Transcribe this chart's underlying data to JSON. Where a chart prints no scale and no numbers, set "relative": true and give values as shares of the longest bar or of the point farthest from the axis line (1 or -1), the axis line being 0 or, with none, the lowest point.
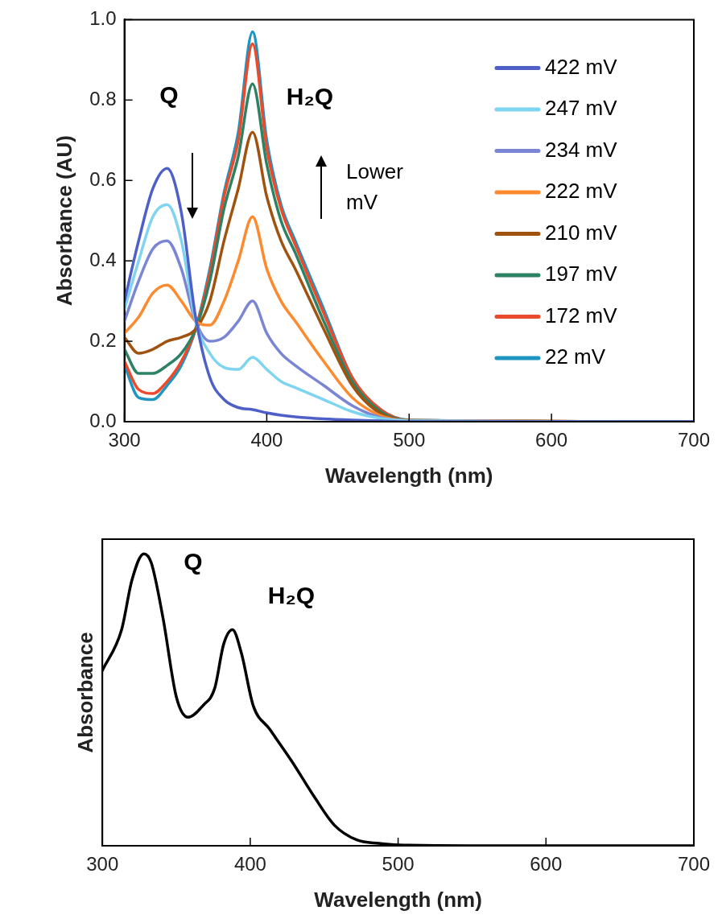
{
  "chart_data": [
    {
      "type": "line",
      "xlabel": "Wavelength (nm)",
      "ylabel": "Absorbance (AU)",
      "xlim": [
        300,
        700
      ],
      "xticks": [
        300,
        400,
        500,
        600,
        700
      ],
      "ylim": [
        0,
        1
      ],
      "yticks": [
        {
          "value": 0,
          "label": "0.0"
        },
        {
          "value": 0.2,
          "label": "0.2"
        },
        {
          "value": 0.4,
          "label": "0.4"
        },
        {
          "value": 0.6,
          "label": "0.6"
        },
        {
          "value": 0.8,
          "label": "0.8"
        },
        {
          "value": 1,
          "label": "1.0"
        }
      ],
      "grid": false,
      "legend": "top right",
      "marker": "none",
      "line_style": "solid",
      "annotations": [
        "Q",
        "H₂Q",
        "Lower mV"
      ],
      "x": [
        300,
        310,
        320,
        330,
        340,
        350,
        360,
        370,
        380,
        390,
        400,
        410,
        420,
        440,
        460,
        480,
        500,
        700
      ],
      "series": [
        {
          "name": "422 mV",
          "color": "#4f5fc8",
          "values": [
            0.3,
            0.45,
            0.58,
            0.63,
            0.52,
            0.26,
            0.11,
            0.055,
            0.035,
            0.03,
            0.022,
            0.016,
            0.012,
            0.007,
            0.004,
            0.002,
            0,
            0
          ]
        },
        {
          "name": "247 mV",
          "color": "#7fd4f0",
          "values": [
            0.28,
            0.4,
            0.51,
            0.54,
            0.45,
            0.25,
            0.17,
            0.135,
            0.13,
            0.16,
            0.13,
            0.1,
            0.085,
            0.055,
            0.025,
            0.008,
            0.002,
            0
          ]
        },
        {
          "name": "234 mV",
          "color": "#7a86d4",
          "values": [
            0.25,
            0.35,
            0.43,
            0.45,
            0.38,
            0.25,
            0.2,
            0.21,
            0.25,
            0.3,
            0.22,
            0.17,
            0.14,
            0.09,
            0.04,
            0.01,
            0.002,
            0
          ]
        },
        {
          "name": "222 mV",
          "color": "#fd8a2e",
          "values": [
            0.22,
            0.26,
            0.32,
            0.34,
            0.3,
            0.25,
            0.24,
            0.3,
            0.4,
            0.51,
            0.38,
            0.3,
            0.25,
            0.15,
            0.06,
            0.015,
            0.003,
            0
          ]
        },
        {
          "name": "210 mV",
          "color": "#a0520f",
          "values": [
            0.21,
            0.17,
            0.18,
            0.2,
            0.21,
            0.23,
            0.3,
            0.45,
            0.58,
            0.72,
            0.56,
            0.45,
            0.38,
            0.23,
            0.09,
            0.02,
            0.003,
            0
          ]
        },
        {
          "name": "197 mV",
          "color": "#2e8264",
          "values": [
            0.18,
            0.12,
            0.12,
            0.14,
            0.17,
            0.23,
            0.35,
            0.53,
            0.66,
            0.84,
            0.64,
            0.5,
            0.42,
            0.25,
            0.1,
            0.025,
            0.003,
            0
          ]
        },
        {
          "name": "172 mV",
          "color": "#ec4a2c",
          "values": [
            0.15,
            0.08,
            0.07,
            0.1,
            0.15,
            0.23,
            0.37,
            0.56,
            0.7,
            0.94,
            0.68,
            0.53,
            0.44,
            0.27,
            0.11,
            0.03,
            0.003,
            0
          ]
        },
        {
          "name": "22 mV",
          "color": "#1e95c0",
          "values": [
            0.14,
            0.06,
            0.055,
            0.09,
            0.14,
            0.23,
            0.38,
            0.57,
            0.72,
            0.97,
            0.7,
            0.54,
            0.45,
            0.28,
            0.11,
            0.03,
            0.004,
            0
          ]
        }
      ]
    },
    {
      "type": "line",
      "relative": true,
      "xlabel": "Wavelength (nm)",
      "ylabel": "Absorbance",
      "xlim": [
        300,
        700
      ],
      "xticks": [
        300,
        400,
        500,
        600,
        700
      ],
      "grid": false,
      "legend": false,
      "marker": "none",
      "line_style": "solid",
      "annotations": [
        "Q",
        "H₂Q"
      ],
      "x": [
        300,
        313,
        320,
        328,
        333,
        341,
        350,
        358,
        368,
        376,
        382,
        388,
        394,
        402,
        413,
        428,
        443,
        457,
        472,
        487,
        500,
        600,
        700
      ],
      "series": [
        {
          "color": "#000000",
          "values": [
            0.6,
            0.74,
            0.91,
            1.0,
            0.97,
            0.78,
            0.51,
            0.44,
            0.48,
            0.54,
            0.69,
            0.74,
            0.66,
            0.48,
            0.4,
            0.29,
            0.17,
            0.07,
            0.02,
            0.008,
            0.003,
            0,
            0
          ]
        }
      ]
    }
  ]
}
